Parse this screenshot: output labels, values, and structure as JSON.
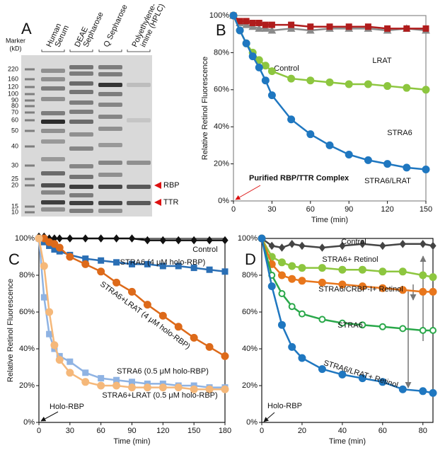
{
  "gel": {
    "panel_label": "A",
    "marker_title": [
      "Marker",
      "(kD)"
    ],
    "lanes": [
      [
        "Human",
        "Serum"
      ],
      [
        "DEAE",
        "Sepharose"
      ],
      [
        "Q Sepharose"
      ],
      [
        "Polyethylene-",
        "imine (HPLC)"
      ]
    ],
    "markers": [
      220,
      160,
      120,
      100,
      90,
      80,
      70,
      60,
      50,
      40,
      30,
      25,
      20,
      15,
      10
    ],
    "band_labels": [
      "RBP",
      "TTR"
    ]
  },
  "chart_data": [
    {
      "type": "line",
      "panel_label": "B",
      "y_label": "Relative Retinol Fluorescence",
      "x_label": "Time (min)",
      "annotations": [
        "Purified RBP/TTR Complex"
      ],
      "x": [
        0,
        5,
        10,
        15,
        20,
        25,
        30,
        45,
        60,
        75,
        90,
        105,
        120,
        135,
        150
      ],
      "xlim": [
        0,
        150
      ],
      "xticks": [
        0,
        30,
        60,
        90,
        120,
        150
      ],
      "ylim": [
        0,
        100
      ],
      "yticks": [
        {
          "value": 0,
          "label": "0%"
        },
        {
          "value": 20,
          "label": "20%"
        },
        {
          "value": 40,
          "label": "40%"
        },
        {
          "value": 60,
          "label": "60%"
        },
        {
          "value": 80,
          "label": "80%"
        },
        {
          "value": 100,
          "label": "100%"
        }
      ],
      "series": [
        {
          "name": "Control",
          "color": "#8a8a8a",
          "marker": "triangle",
          "values": [
            100,
            96,
            95,
            94,
            93,
            93,
            92,
            93,
            92,
            93,
            93,
            93,
            92,
            93,
            92
          ]
        },
        {
          "name": "LRAT",
          "color": "#b01c1c",
          "marker": "square",
          "values": [
            100,
            97,
            97,
            96,
            96,
            95,
            95,
            95,
            94,
            94,
            94,
            94,
            93,
            93,
            93
          ]
        },
        {
          "name": "STRA6",
          "color": "#8dc63f",
          "marker": "circle",
          "values": [
            100,
            92,
            85,
            80,
            76,
            73,
            70,
            66,
            65,
            64,
            63,
            63,
            62,
            61,
            60
          ]
        },
        {
          "name": "STRA6/LRAT",
          "color": "#1f77c0",
          "marker": "circle",
          "values": [
            100,
            92,
            85,
            78,
            72,
            65,
            57,
            44,
            36,
            30,
            25,
            22,
            20,
            18,
            17
          ]
        }
      ]
    },
    {
      "type": "line",
      "panel_label": "C",
      "y_label": "Relative Retinol Fluorescence",
      "x_label": "Time (min)",
      "annotations": [
        "Holo-RBP"
      ],
      "x": [
        0,
        5,
        10,
        15,
        20,
        30,
        45,
        60,
        75,
        90,
        105,
        120,
        135,
        150,
        165,
        180
      ],
      "xlim": [
        0,
        180
      ],
      "xticks": [
        0,
        30,
        60,
        90,
        120,
        150,
        180
      ],
      "ylim": [
        0,
        100
      ],
      "yticks": [
        {
          "value": 0,
          "label": "0%"
        },
        {
          "value": 20,
          "label": "20%"
        },
        {
          "value": 40,
          "label": "40%"
        },
        {
          "value": 60,
          "label": "60%"
        },
        {
          "value": 80,
          "label": "80%"
        },
        {
          "value": 100,
          "label": "100%"
        }
      ],
      "series": [
        {
          "name": "Control",
          "color": "#111111",
          "marker": "diamond",
          "values": [
            101,
            101,
            100,
            100,
            100,
            100,
            100,
            100,
            100,
            100,
            99,
            99,
            99,
            99,
            99,
            99
          ]
        },
        {
          "name": "STRA6 (4 μM holo-RBP)",
          "color": "#2a6fb5",
          "marker": "square",
          "values": [
            100,
            98,
            96,
            94,
            93,
            91,
            89,
            88,
            87,
            86,
            86,
            85,
            85,
            84,
            83,
            82
          ]
        },
        {
          "name": "STRA6+LRAT (4 μM holo-RBP)",
          "color": "#dd6a1a",
          "marker": "circle",
          "values": [
            100,
            100,
            98,
            97,
            95,
            90,
            86,
            82,
            76,
            71,
            64,
            58,
            52,
            46,
            41,
            36
          ]
        },
        {
          "name": "STRA6 (0.5 μM holo-RBP)",
          "color": "#8fb3e3",
          "marker": "square",
          "values": [
            100,
            68,
            48,
            40,
            36,
            33,
            27,
            24,
            23,
            22,
            21,
            21,
            20,
            20,
            19,
            19
          ]
        },
        {
          "name": "STRA6+LRAT (0.5 μM holo-RBP)",
          "color": "#f5b87a",
          "marker": "circle",
          "values": [
            100,
            85,
            60,
            42,
            34,
            27,
            22,
            20,
            20,
            19,
            19,
            19,
            19,
            18,
            18,
            18
          ]
        }
      ]
    },
    {
      "type": "line",
      "panel_label": "D",
      "x_label": "Time (min)",
      "annotations": [
        "Holo-RBP"
      ],
      "x": [
        0,
        5,
        10,
        15,
        20,
        30,
        40,
        50,
        60,
        70,
        80,
        85
      ],
      "xlim": [
        0,
        85
      ],
      "xticks": [
        0,
        20,
        40,
        60,
        80
      ],
      "ylim": [
        0,
        100
      ],
      "yticks": [
        {
          "value": 0,
          "label": "0%"
        },
        {
          "value": 20,
          "label": "20%"
        },
        {
          "value": 40,
          "label": "40%"
        },
        {
          "value": 60,
          "label": "60%"
        },
        {
          "value": 80,
          "label": "80%"
        },
        {
          "value": 100,
          "label": "100%"
        }
      ],
      "series": [
        {
          "name": "Control",
          "color": "#444444",
          "marker": "diamond",
          "values": [
            100,
            96,
            95,
            97,
            96,
            95,
            96,
            97,
            96,
            97,
            97,
            96
          ]
        },
        {
          "name": "STRA6+ Retinol",
          "color": "#8dc63f",
          "marker": "circle",
          "values": [
            100,
            90,
            87,
            85,
            84,
            84,
            83,
            83,
            82,
            82,
            80,
            79
          ]
        },
        {
          "name": "STRA6/CRBP-I+ Retinol",
          "color": "#e8761c",
          "marker": "circle",
          "values": [
            100,
            86,
            80,
            78,
            77,
            76,
            75,
            74,
            73,
            72,
            71,
            71
          ]
        },
        {
          "name": "STRA6",
          "color": "#2aa84a",
          "marker": "open-circle",
          "values": [
            100,
            80,
            70,
            63,
            59,
            56,
            54,
            53,
            52,
            51,
            50,
            50
          ]
        },
        {
          "name": "STRA6/LRAT+ Retinol",
          "color": "#1f77c0",
          "marker": "circle",
          "values": [
            100,
            74,
            53,
            41,
            35,
            29,
            26,
            24,
            22,
            18,
            17,
            16
          ]
        }
      ]
    }
  ]
}
